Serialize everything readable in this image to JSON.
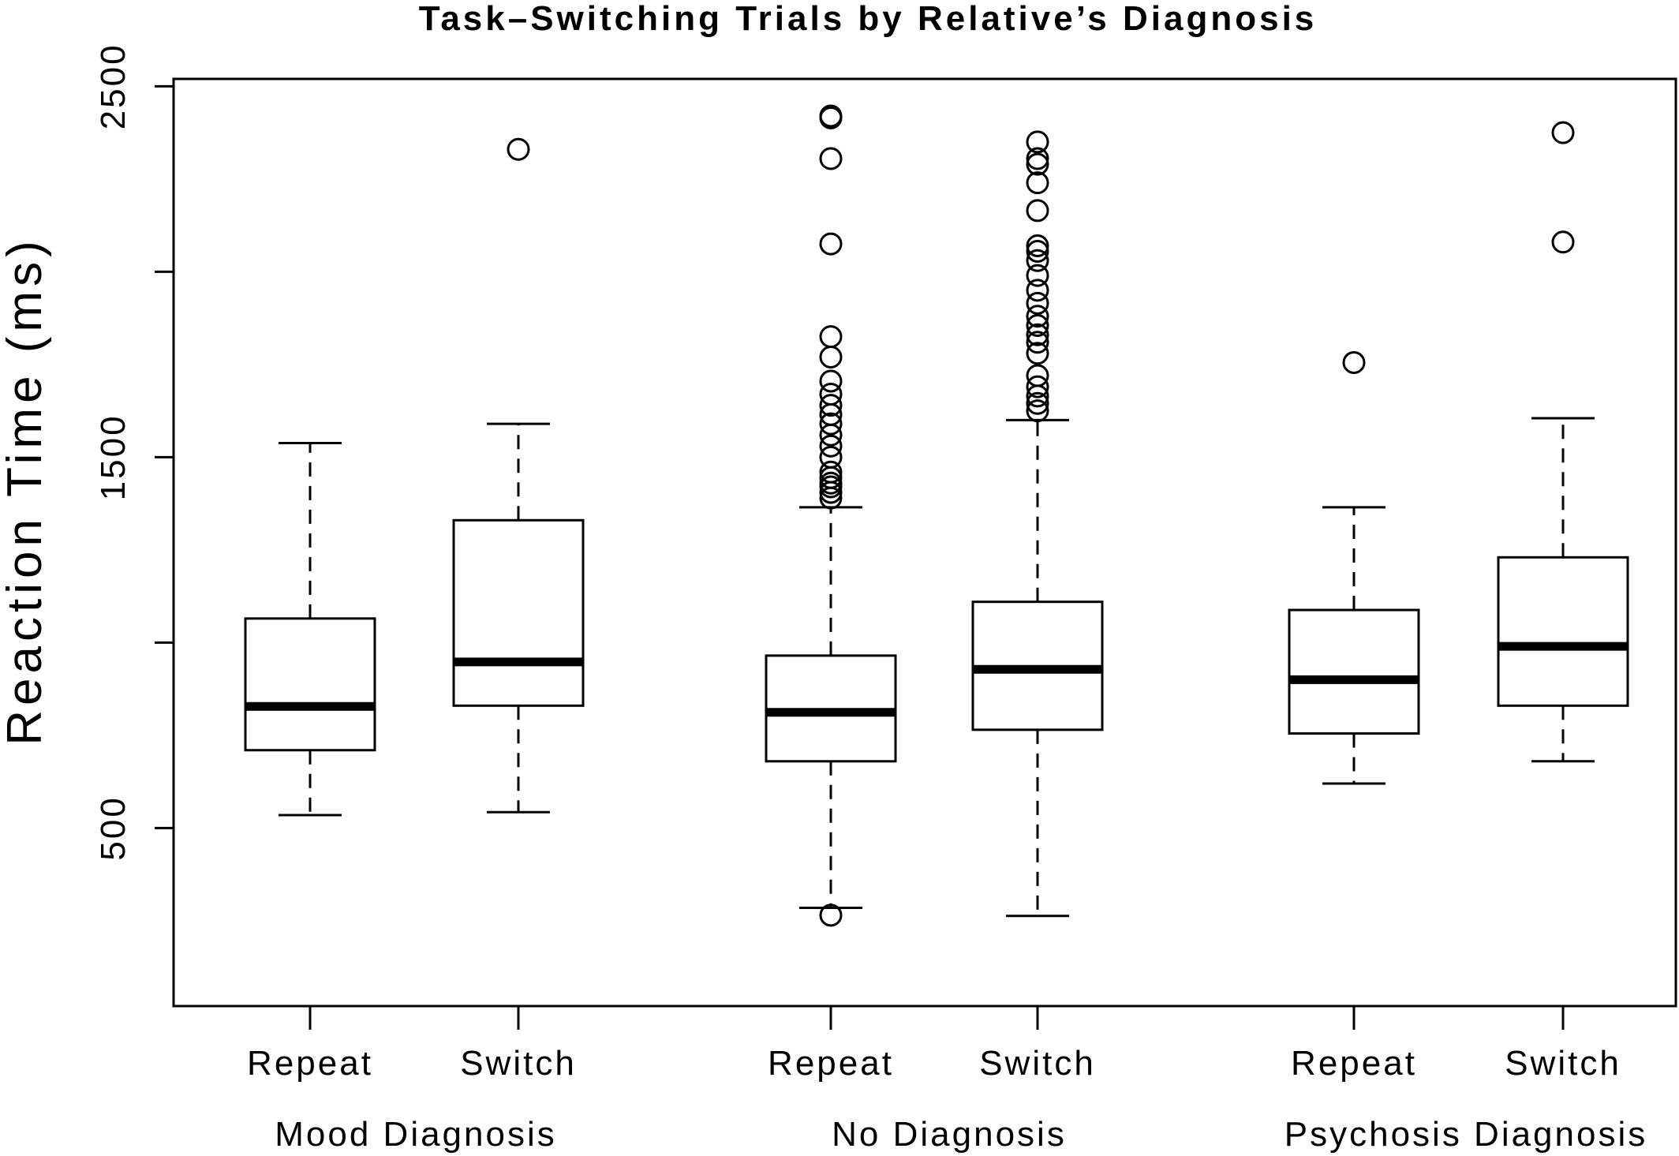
{
  "chart_data": {
    "type": "box",
    "title": "Task–Switching Trials by Relative’s Diagnosis",
    "ylabel": "Reaction Time (ms)",
    "xlabel": "",
    "ylim": [
      20,
      2520
    ],
    "yticks": [
      500,
      1000,
      1500,
      2000,
      2500
    ],
    "ytick_labels": [
      "500",
      "",
      "1500",
      "",
      "2500"
    ],
    "groups": [
      "Mood Diagnosis",
      "No Diagnosis",
      "Psychosis Diagnosis"
    ],
    "categories": [
      "Repeat",
      "Switch",
      "Repeat",
      "Switch",
      "Repeat",
      "Switch"
    ],
    "boxes": [
      {
        "group": "Mood Diagnosis",
        "label": "Repeat",
        "whisker_low": 535,
        "q1": 710,
        "median": 828,
        "q3": 1065,
        "whisker_high": 1538,
        "outliers": []
      },
      {
        "group": "Mood Diagnosis",
        "label": "Switch",
        "whisker_low": 543,
        "q1": 830,
        "median": 948,
        "q3": 1330,
        "whisker_high": 1590,
        "outliers": [
          2330
        ]
      },
      {
        "group": "No Diagnosis",
        "label": "Repeat",
        "whisker_low": 285,
        "q1": 680,
        "median": 812,
        "q3": 965,
        "whisker_high": 1365,
        "outliers": [
          265,
          1390,
          1405,
          1420,
          1430,
          1445,
          1460,
          1500,
          1530,
          1560,
          1590,
          1615,
          1640,
          1670,
          1705,
          1770,
          1825,
          2075,
          2305,
          2415,
          2420
        ]
      },
      {
        "group": "No Diagnosis",
        "label": "Switch",
        "whisker_low": 263,
        "q1": 765,
        "median": 928,
        "q3": 1110,
        "whisker_high": 1600,
        "outliers": [
          1625,
          1645,
          1665,
          1690,
          1720,
          1780,
          1810,
          1830,
          1855,
          1880,
          1915,
          1950,
          1990,
          2030,
          2055,
          2070,
          2165,
          2240,
          2290,
          2305,
          2350
        ]
      },
      {
        "group": "Psychosis Diagnosis",
        "label": "Repeat",
        "whisker_low": 620,
        "q1": 755,
        "median": 900,
        "q3": 1088,
        "whisker_high": 1365,
        "outliers": [
          1755
        ]
      },
      {
        "group": "Psychosis Diagnosis",
        "label": "Switch",
        "whisker_low": 680,
        "q1": 830,
        "median": 990,
        "q3": 1230,
        "whisker_high": 1605,
        "outliers": [
          2080,
          2375
        ]
      }
    ],
    "grid": false,
    "legend": "none",
    "colors": {
      "stroke": "#000000",
      "fill": "#ffffff"
    }
  }
}
